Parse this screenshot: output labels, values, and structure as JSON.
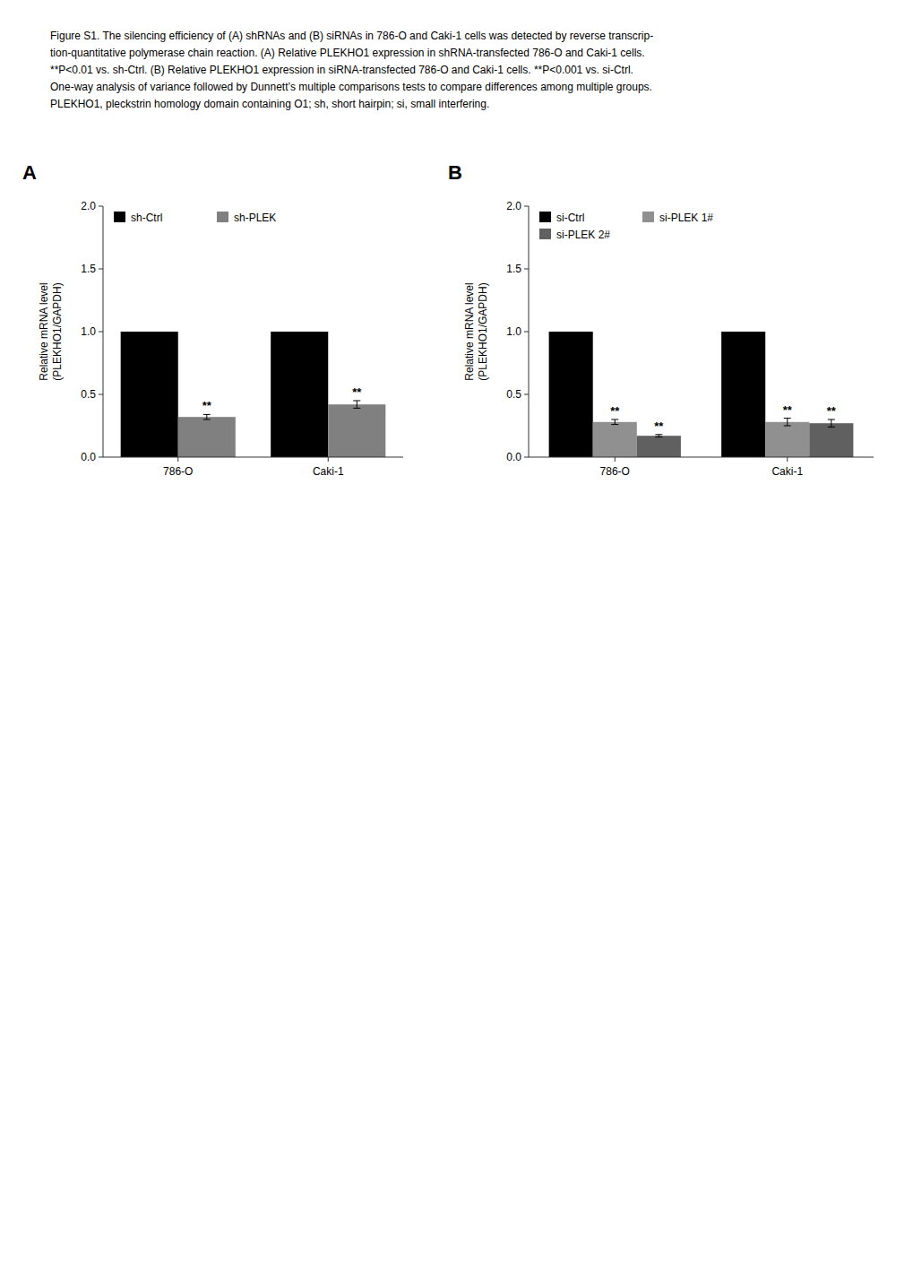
{
  "annotations": [
    "Figure S1. The silencing efficiency of (A) shRNAs and (B) siRNAs in 786-O and Caki-1 cells was detected by reverse transcrip-",
    "tion-quantitative polymerase chain reaction. (A) Relative PLEKHO1 expression in shRNA-transfected 786-O and Caki-1 cells.",
    "**P<0.01 vs. sh-Ctrl. (B) Relative PLEKHO1 expression in siRNA-transfected 786-O and Caki-1 cells. **P<0.001 vs. si-Ctrl.",
    "One-way analysis of variance followed by Dunnett’s multiple comparisons tests to compare differences among multiple groups.",
    "PLEKHO1, pleckstrin homology domain containing O1; sh, short hairpin; si, small interfering."
  ],
  "chart_data": [
    {
      "type": "bar",
      "title": "A",
      "categories": [
        "786-O",
        "Caki-1"
      ],
      "series": [
        {
          "name": "sh-Ctrl",
          "color": "#000000",
          "values": [
            1.0,
            1.0
          ],
          "errors": [
            0.0,
            0.0
          ],
          "significance": [
            null,
            null
          ]
        },
        {
          "name": "sh-PLEK",
          "color": "#808080",
          "values": [
            0.32,
            0.42
          ],
          "errors": [
            0.02,
            0.03
          ],
          "significance": [
            "**",
            "**"
          ]
        }
      ],
      "ylabel": "Relative mRNA level\n(PLEKHO1/GAPDH)",
      "ylim": [
        0.0,
        2.0
      ],
      "yticks": [
        {
          "value": 0.0,
          "label": "0.0"
        },
        0.5,
        {
          "value": 1.0,
          "label": "1.0"
        },
        1.5,
        {
          "value": 2.0,
          "label": "2.0"
        }
      ],
      "legend": "upper left",
      "grid": false
    },
    {
      "type": "bar",
      "title": "B",
      "categories": [
        "786-O",
        "Caki-1"
      ],
      "series": [
        {
          "name": "si-Ctrl",
          "color": "#000000",
          "values": [
            1.0,
            1.0
          ],
          "errors": [
            0.0,
            0.0
          ],
          "significance": [
            null,
            null
          ]
        },
        {
          "name": "si-PLEK 1#",
          "color": "#909090",
          "values": [
            0.28,
            0.28
          ],
          "errors": [
            0.02,
            0.03
          ],
          "significance": [
            "**",
            "**"
          ]
        },
        {
          "name": "si-PLEK 2#",
          "color": "#606060",
          "values": [
            0.17,
            0.27
          ],
          "errors": [
            0.01,
            0.03
          ],
          "significance": [
            "**",
            "**"
          ]
        }
      ],
      "ylabel": "Relative mRNA level\n(PLEKHO1/GAPDH)",
      "ylim": [
        0.0,
        2.0
      ],
      "yticks": [
        {
          "value": 0.0,
          "label": "0.0"
        },
        0.5,
        {
          "value": 1.0,
          "label": "1.0"
        },
        1.5,
        {
          "value": 2.0,
          "label": "2.0"
        }
      ],
      "legend": "upper left",
      "grid": false
    }
  ]
}
